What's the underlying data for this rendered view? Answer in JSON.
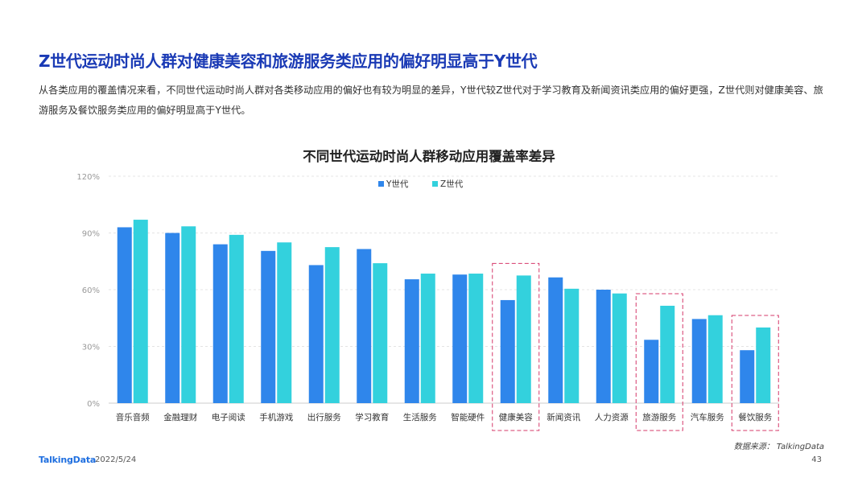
{
  "header": {
    "title": "Z世代运动时尚人群对健康美容和旅游服务类应用的偏好明显高于Y世代",
    "description": "从各类应用的覆盖情况来看，不同世代运动时尚人群对各类移动应用的偏好也有较为明显的差异，Y世代较Z世代对于学习教育及新闻资讯类应用的偏好更强，Z世代则对健康美容、旅游服务及餐饮服务类应用的偏好明显高于Y世代。"
  },
  "chart_data": {
    "type": "bar",
    "title": "不同世代运动时尚人群移动应用覆盖率差异",
    "categories": [
      "音乐音频",
      "金融理财",
      "电子阅读",
      "手机游戏",
      "出行服务",
      "学习教育",
      "生活服务",
      "智能硬件",
      "健康美容",
      "新闻资讯",
      "人力资源",
      "旅游服务",
      "汽车服务",
      "餐饮服务"
    ],
    "series": [
      {
        "name": "Y世代",
        "color": "#2f86eb",
        "values": [
          93,
          90,
          84,
          80.5,
          73,
          81.5,
          65.5,
          68,
          54.5,
          66.5,
          60,
          33.5,
          44.5,
          28
        ]
      },
      {
        "name": "Z世代",
        "color": "#33d1dd",
        "values": [
          97,
          93.5,
          89,
          85,
          82.5,
          74,
          68.5,
          68.5,
          67.5,
          60.5,
          58,
          51.5,
          46.5,
          40
        ]
      }
    ],
    "y_ticks": [
      "0%",
      "30%",
      "60%",
      "90%",
      "120%"
    ],
    "ylim": [
      0,
      120
    ],
    "grid": true,
    "legend_position": "top-center",
    "highlighted_categories": [
      "健康美容",
      "旅游服务",
      "餐饮服务"
    ],
    "highlight_color": "#d6386a"
  },
  "footer": {
    "source": "数据来源： TalkingData",
    "logo_text": "TalkingData",
    "date": "2022/5/24",
    "page_number": "43"
  }
}
